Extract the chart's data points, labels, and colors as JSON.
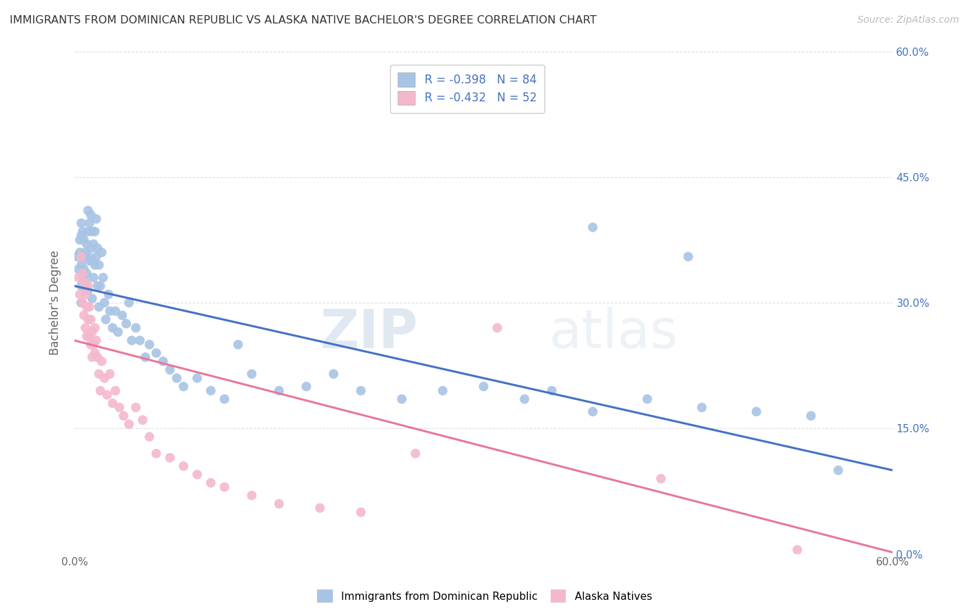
{
  "title": "IMMIGRANTS FROM DOMINICAN REPUBLIC VS ALASKA NATIVE BACHELOR'S DEGREE CORRELATION CHART",
  "source": "Source: ZipAtlas.com",
  "ylabel": "Bachelor's Degree",
  "watermark_zip": "ZIP",
  "watermark_atlas": "atlas",
  "blue_R": -0.398,
  "blue_N": 84,
  "pink_R": -0.432,
  "pink_N": 52,
  "blue_color": "#a8c4e5",
  "pink_color": "#f4b8cc",
  "blue_line_color": "#4472c4",
  "pink_line_color": "#e8789a",
  "right_axis_color": "#4472c4",
  "legend_label_blue": "Immigrants from Dominican Republic",
  "legend_label_pink": "Alaska Natives",
  "xlim": [
    0.0,
    0.6
  ],
  "ylim": [
    0.0,
    0.6
  ],
  "blue_scatter_x": [
    0.002,
    0.003,
    0.004,
    0.004,
    0.005,
    0.005,
    0.005,
    0.005,
    0.005,
    0.006,
    0.006,
    0.006,
    0.007,
    0.007,
    0.008,
    0.008,
    0.009,
    0.009,
    0.01,
    0.01,
    0.01,
    0.01,
    0.011,
    0.011,
    0.012,
    0.012,
    0.013,
    0.013,
    0.013,
    0.014,
    0.014,
    0.015,
    0.015,
    0.016,
    0.016,
    0.017,
    0.017,
    0.018,
    0.018,
    0.019,
    0.02,
    0.021,
    0.022,
    0.023,
    0.025,
    0.026,
    0.028,
    0.03,
    0.032,
    0.035,
    0.038,
    0.04,
    0.042,
    0.045,
    0.048,
    0.052,
    0.055,
    0.06,
    0.065,
    0.07,
    0.075,
    0.08,
    0.09,
    0.1,
    0.11,
    0.12,
    0.13,
    0.15,
    0.17,
    0.19,
    0.21,
    0.24,
    0.27,
    0.3,
    0.33,
    0.35,
    0.38,
    0.42,
    0.46,
    0.5,
    0.54,
    0.45,
    0.38,
    0.56
  ],
  "blue_scatter_y": [
    0.355,
    0.34,
    0.375,
    0.36,
    0.395,
    0.38,
    0.345,
    0.32,
    0.3,
    0.385,
    0.355,
    0.33,
    0.375,
    0.34,
    0.36,
    0.325,
    0.37,
    0.335,
    0.41,
    0.385,
    0.355,
    0.315,
    0.395,
    0.35,
    0.405,
    0.365,
    0.385,
    0.35,
    0.305,
    0.37,
    0.33,
    0.385,
    0.345,
    0.4,
    0.355,
    0.365,
    0.32,
    0.345,
    0.295,
    0.32,
    0.36,
    0.33,
    0.3,
    0.28,
    0.31,
    0.29,
    0.27,
    0.29,
    0.265,
    0.285,
    0.275,
    0.3,
    0.255,
    0.27,
    0.255,
    0.235,
    0.25,
    0.24,
    0.23,
    0.22,
    0.21,
    0.2,
    0.21,
    0.195,
    0.185,
    0.25,
    0.215,
    0.195,
    0.2,
    0.215,
    0.195,
    0.185,
    0.195,
    0.2,
    0.185,
    0.195,
    0.17,
    0.185,
    0.175,
    0.17,
    0.165,
    0.355,
    0.39,
    0.1
  ],
  "pink_scatter_x": [
    0.003,
    0.004,
    0.005,
    0.006,
    0.006,
    0.007,
    0.007,
    0.008,
    0.008,
    0.009,
    0.009,
    0.01,
    0.01,
    0.011,
    0.011,
    0.012,
    0.012,
    0.013,
    0.013,
    0.014,
    0.015,
    0.015,
    0.016,
    0.017,
    0.018,
    0.019,
    0.02,
    0.022,
    0.024,
    0.026,
    0.028,
    0.03,
    0.033,
    0.036,
    0.04,
    0.045,
    0.05,
    0.055,
    0.06,
    0.07,
    0.08,
    0.09,
    0.1,
    0.11,
    0.13,
    0.15,
    0.18,
    0.21,
    0.25,
    0.31,
    0.43,
    0.53
  ],
  "pink_scatter_y": [
    0.33,
    0.31,
    0.355,
    0.335,
    0.3,
    0.325,
    0.285,
    0.31,
    0.27,
    0.295,
    0.26,
    0.32,
    0.28,
    0.295,
    0.26,
    0.28,
    0.25,
    0.265,
    0.235,
    0.25,
    0.27,
    0.24,
    0.255,
    0.235,
    0.215,
    0.195,
    0.23,
    0.21,
    0.19,
    0.215,
    0.18,
    0.195,
    0.175,
    0.165,
    0.155,
    0.175,
    0.16,
    0.14,
    0.12,
    0.115,
    0.105,
    0.095,
    0.085,
    0.08,
    0.07,
    0.06,
    0.055,
    0.05,
    0.12,
    0.27,
    0.09,
    0.005
  ],
  "blue_line_y_start": 0.32,
  "blue_line_y_end": 0.1,
  "pink_line_y_start": 0.255,
  "pink_line_y_end": 0.002,
  "ytick_labels": [
    "0.0%",
    "15.0%",
    "30.0%",
    "45.0%",
    "60.0%"
  ],
  "ytick_values": [
    0.0,
    0.15,
    0.3,
    0.45,
    0.6
  ],
  "xtick_values": [
    0.0,
    0.1,
    0.2,
    0.3,
    0.4,
    0.5,
    0.6
  ],
  "background_color": "#ffffff",
  "grid_color": "#dedede"
}
